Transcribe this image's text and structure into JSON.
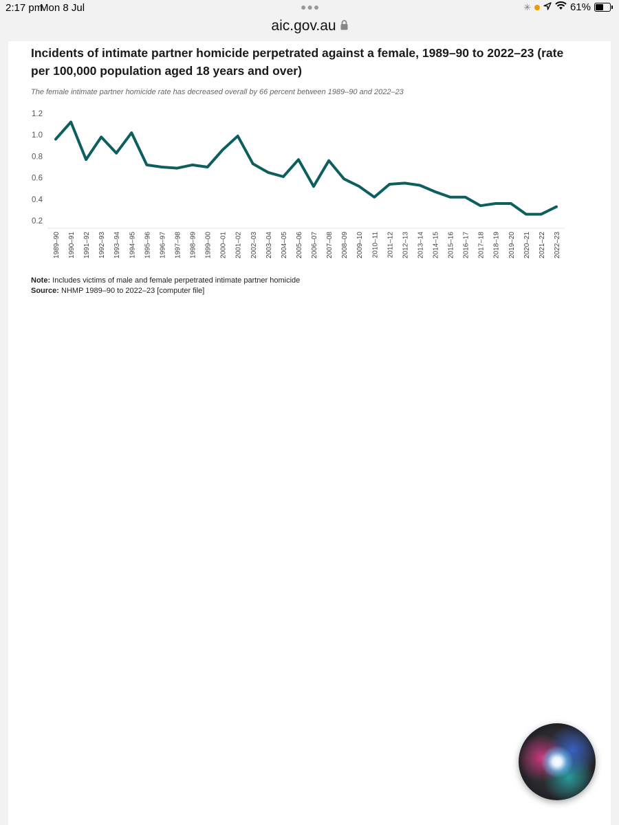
{
  "status_bar": {
    "time": "2:17 pm",
    "date": "Mon 8 Jul",
    "battery": "61%",
    "battery_level": 0.61
  },
  "browser": {
    "url": "aic.gov.au"
  },
  "chart_data": {
    "type": "line",
    "title": "Incidents of intimate partner homicide perpetrated against a female, 1989–90 to 2022–23 (rate per 100,000 population aged 18 years and over)",
    "subtitle": "The female intimate partner homicide rate has decreased overall by 66 percent between 1989–90 and 2022–23",
    "categories": [
      "1989–90",
      "1990–91",
      "1991–92",
      "1992–93",
      "1993–94",
      "1994–95",
      "1995–96",
      "1996–97",
      "1997–98",
      "1998–99",
      "1999–00",
      "2000–01",
      "2001–02",
      "2002–03",
      "2003–04",
      "2004–05",
      "2005–06",
      "2006–07",
      "2007–08",
      "2008–09",
      "2009–10",
      "2010–11",
      "2011–12",
      "2012–13",
      "2013–14",
      "2014–15",
      "2015–16",
      "2016–17",
      "2017–18",
      "2018–19",
      "2019–20",
      "2020–21",
      "2021–22",
      "2022–23"
    ],
    "series": [
      {
        "values": [
          0.96,
          1.12,
          0.77,
          0.98,
          0.83,
          1.02,
          0.72,
          0.7,
          0.69,
          0.72,
          0.7,
          0.86,
          0.99,
          0.73,
          0.65,
          0.61,
          0.77,
          0.52,
          0.76,
          0.59,
          0.52,
          0.42,
          0.54,
          0.55,
          0.53,
          0.47,
          0.42,
          0.42,
          0.34,
          0.36,
          0.36,
          0.26,
          0.26,
          0.33
        ],
        "color": "#0d5f5f"
      }
    ],
    "y_ticks": [
      "1.2",
      "1.0",
      "0.8",
      "0.6",
      "0.4",
      "0.2"
    ],
    "ylim": [
      0.2,
      1.2
    ],
    "grid": false,
    "legend": "none"
  },
  "footer": {
    "note_label": "Note:",
    "note_text": " Includes victims of male and female perpetrated intimate partner homicide",
    "source_label": "Source:",
    "source_text": " NHMP 1989–90 to 2022–23 [computer file]"
  }
}
